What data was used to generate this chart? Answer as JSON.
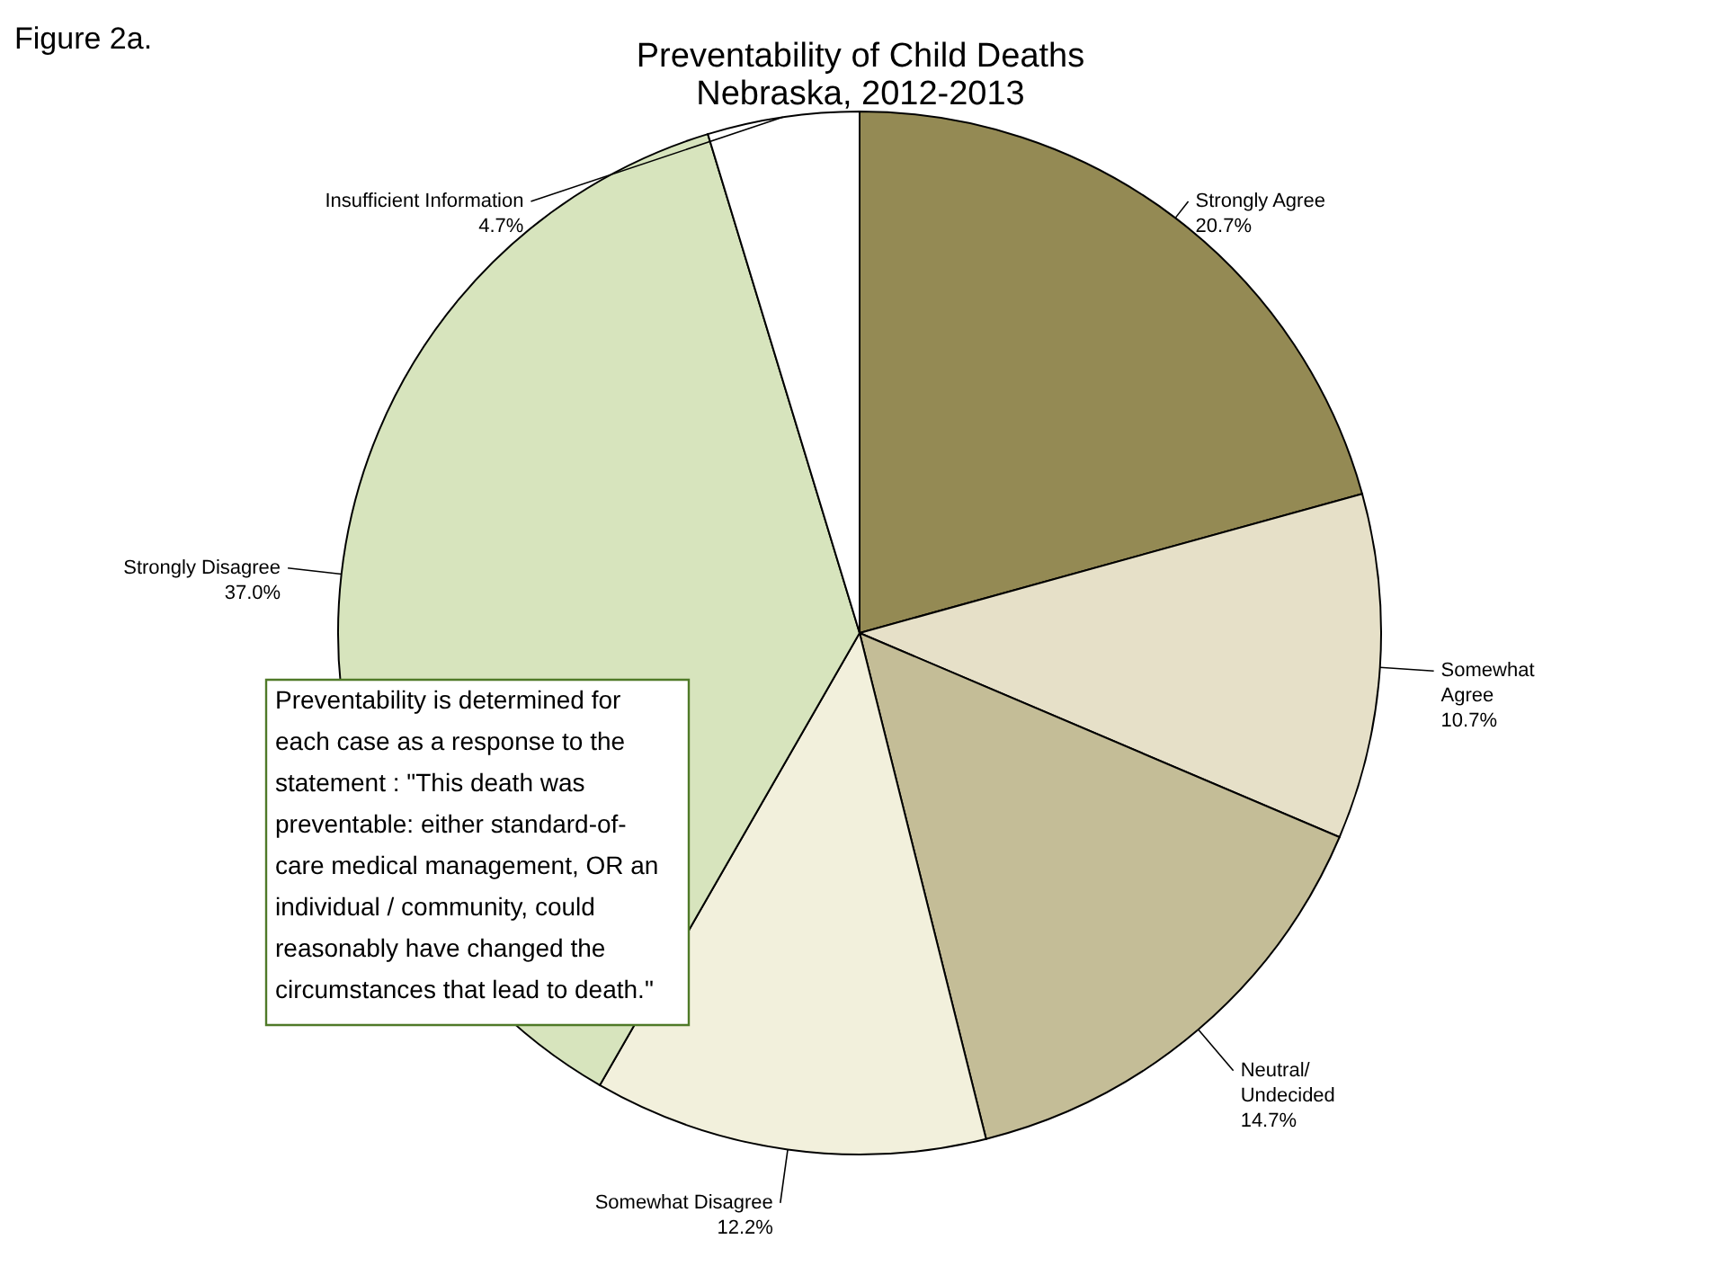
{
  "chart_data": {
    "type": "pie",
    "title": "Preventability of Child Deaths",
    "subtitle": "Nebraska, 2012-2013",
    "categories": [
      "Strongly Agree",
      "Somewhat\nAgree",
      "Neutral/\nUndecided",
      "Somewhat Disagree",
      "Strongly Disagree",
      "Insufficient Information"
    ],
    "values": [
      20.7,
      10.7,
      14.7,
      12.2,
      37.0,
      4.7
    ],
    "value_labels": [
      "20.7%",
      "10.7%",
      "14.7%",
      "12.2%",
      "37.0%",
      "4.7%"
    ],
    "colors": [
      "#948a54",
      "#e6e0c8",
      "#c4bd97",
      "#f2f0dc",
      "#d7e4bd",
      "#ffffff"
    ],
    "legend": false,
    "annotations": [
      "Figure 2a.",
      "Preventability is determined for\neach case as a response to the\nstatement : \"This death was\npreventable: either standard-of-\ncare medical management, OR an\nindividual / community, could\nreasonably have changed the\ncircumstances that lead to death.\""
    ]
  }
}
